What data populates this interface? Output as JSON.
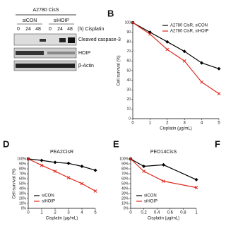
{
  "blot": {
    "title": "A2780 CisS",
    "groups": [
      "siCON",
      "siHOIP"
    ],
    "times": [
      "0",
      "24",
      "48",
      "0",
      "24",
      "48"
    ],
    "time_label": "(h) Cisplatin",
    "bands": [
      "Cleaved caspase-3",
      "HOIP",
      "β-Actin"
    ]
  },
  "panel_labels": [
    "B",
    "D",
    "E",
    "F"
  ],
  "chart_data": [
    {
      "type": "line",
      "xlabel": "Cisplatin (μg/mL)",
      "ylabel": "Cell survival (%)",
      "x": [
        0,
        1,
        2,
        3,
        4,
        5
      ],
      "xlim": [
        0,
        5
      ],
      "xticks": [
        0,
        1,
        2,
        3,
        4,
        5
      ],
      "ylim": [
        0,
        100
      ],
      "yticks": [
        0,
        10,
        20,
        30,
        40,
        50,
        60,
        70,
        80,
        90,
        100
      ],
      "legend": "upper right",
      "series": [
        {
          "name": "A2780 CisR, siCON",
          "color": "#000000",
          "values": [
            100,
            90,
            80,
            70,
            58,
            52
          ]
        },
        {
          "name": "A2780 CisR, siHOIP",
          "color": "#e0261b",
          "values": [
            100,
            88,
            72,
            60,
            38,
            26
          ]
        }
      ]
    },
    {
      "type": "line",
      "title": "PEA2CisR",
      "xlabel": "Cisplatin (μg/mL)",
      "ylabel": "Cell survival (%)",
      "x": [
        0,
        1,
        2,
        3,
        4,
        5
      ],
      "xlim": [
        0,
        5
      ],
      "xticks": [
        0,
        1,
        2,
        3,
        4,
        5
      ],
      "ylim": [
        0,
        100
      ],
      "yticks": [
        {
          "value": 0,
          "label": "0%"
        },
        {
          "value": 10,
          "label": "10%"
        },
        {
          "value": 20,
          "label": "20%"
        },
        {
          "value": 30,
          "label": "30%"
        },
        {
          "value": 40,
          "label": "40%"
        },
        {
          "value": 50,
          "label": "50%"
        },
        {
          "value": 60,
          "label": "60%"
        },
        {
          "value": 70,
          "label": "70%"
        },
        {
          "value": 80,
          "label": "80%"
        },
        {
          "value": 90,
          "label": "90%"
        },
        {
          "value": 100,
          "label": "100%"
        }
      ],
      "legend": "lower left",
      "series": [
        {
          "name": "siCON",
          "color": "#000000",
          "values": [
            100,
            97,
            93,
            91,
            85,
            77
          ]
        },
        {
          "name": "siHOIP",
          "color": "#e0261b",
          "values": [
            100,
            87,
            75,
            62,
            50,
            35
          ]
        }
      ]
    },
    {
      "type": "line",
      "title": "PEO14CisS",
      "xlabel": "Cisplatin (μg/mL)",
      "x": [
        0,
        0.2,
        0.5,
        1
      ],
      "xlim": [
        0,
        1
      ],
      "xticks": [
        0,
        0.2,
        0.4,
        0.6,
        0.8,
        1
      ],
      "ylim": [
        0,
        100
      ],
      "yticks": [
        {
          "value": 0,
          "label": "0%"
        },
        {
          "value": 10,
          "label": "10%"
        },
        {
          "value": 20,
          "label": "20%"
        },
        {
          "value": 30,
          "label": "30%"
        },
        {
          "value": 40,
          "label": "40%"
        },
        {
          "value": 50,
          "label": "50%"
        },
        {
          "value": 60,
          "label": "60%"
        },
        {
          "value": 70,
          "label": "70%"
        },
        {
          "value": 80,
          "label": "80%"
        },
        {
          "value": 90,
          "label": "90%"
        },
        {
          "value": 100,
          "label": "100%"
        }
      ],
      "legend": "lower left",
      "series": [
        {
          "name": "siCON",
          "color": "#000000",
          "values": [
            100,
            85,
            88,
            58
          ]
        },
        {
          "name": "siHOIP",
          "color": "#e0261b",
          "values": [
            100,
            75,
            55,
            42
          ]
        }
      ]
    }
  ]
}
